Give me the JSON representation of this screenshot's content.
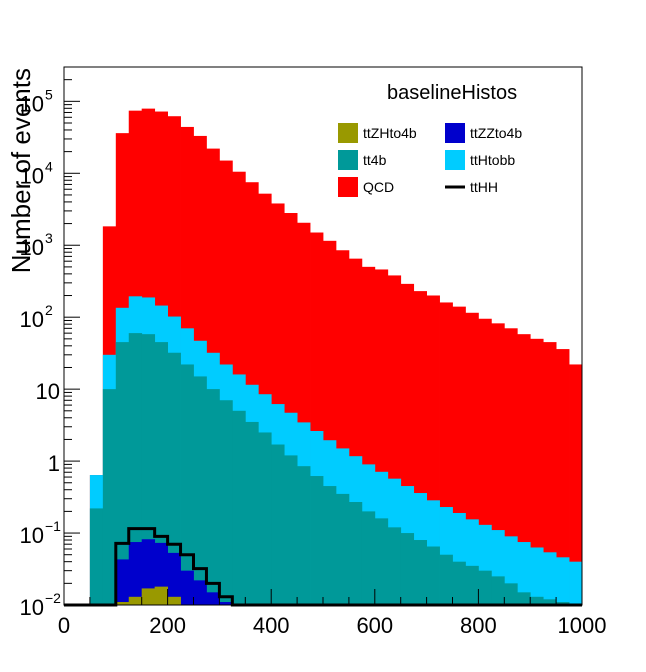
{
  "chart_data": {
    "type": "bar",
    "title": "baselineHistos",
    "xlabel": "",
    "ylabel": "Number of events",
    "xlim": [
      0,
      1000
    ],
    "ylim": [
      0.01,
      300000
    ],
    "y_scale": "log",
    "stacked": true,
    "grid": false,
    "legend_position": "top-right",
    "x_ticks": [
      "0",
      "200",
      "400",
      "600",
      "800",
      "1000"
    ],
    "y_ticks": [
      {
        "value": 0.01,
        "base": "10",
        "exp": "−2"
      },
      {
        "value": 0.1,
        "base": "10",
        "exp": "−1"
      },
      {
        "value": 1,
        "base": "1",
        "exp": ""
      },
      {
        "value": 10,
        "base": "10",
        "exp": ""
      },
      {
        "value": 100,
        "base": "10",
        "exp": "2"
      },
      {
        "value": 1000,
        "base": "10",
        "exp": "3"
      },
      {
        "value": 10000,
        "base": "10",
        "exp": "4"
      },
      {
        "value": 100000,
        "base": "10",
        "exp": "5"
      }
    ],
    "bin_edges": [
      0,
      25,
      50,
      75,
      100,
      125,
      150,
      175,
      200,
      225,
      250,
      275,
      300,
      325,
      350,
      375,
      400,
      425,
      450,
      475,
      500,
      525,
      550,
      575,
      600,
      625,
      650,
      675,
      700,
      725,
      750,
      775,
      800,
      825,
      850,
      875,
      900,
      925,
      950,
      975,
      1000
    ],
    "series": [
      {
        "name": "ttZHto4b",
        "color": "#999900",
        "kind": "fill",
        "values": [
          0,
          0,
          0,
          0,
          0.011,
          0.013,
          0.017,
          0.018,
          0.013,
          0,
          0,
          0,
          0,
          0,
          0,
          0,
          0,
          0,
          0,
          0,
          0,
          0,
          0,
          0,
          0,
          0,
          0,
          0,
          0,
          0,
          0,
          0,
          0,
          0,
          0,
          0,
          0,
          0,
          0,
          0
        ]
      },
      {
        "name": "ttZZto4b",
        "color": "#0000cc",
        "kind": "fill",
        "values": [
          0,
          0,
          0,
          0,
          0.032,
          0.062,
          0.065,
          0.055,
          0.04,
          0.03,
          0.022,
          0.015,
          0.011,
          0,
          0,
          0,
          0,
          0,
          0,
          0,
          0,
          0,
          0,
          0,
          0,
          0,
          0,
          0,
          0,
          0,
          0,
          0,
          0,
          0,
          0,
          0,
          0,
          0,
          0,
          0
        ]
      },
      {
        "name": "tt4b",
        "color": "#009999",
        "kind": "fill",
        "values": [
          0,
          0,
          0.22,
          10,
          45,
          60,
          58,
          45,
          32,
          22,
          15,
          10,
          7,
          5,
          3.5,
          2.5,
          1.7,
          1.2,
          0.85,
          0.62,
          0.45,
          0.35,
          0.27,
          0.2,
          0.16,
          0.12,
          0.1,
          0.08,
          0.065,
          0.05,
          0.04,
          0.035,
          0.03,
          0.025,
          0.02,
          0.015,
          0.013,
          0.012,
          0.011,
          0.01
        ]
      },
      {
        "name": "ttHtobb",
        "color": "#00ccff",
        "kind": "fill",
        "values": [
          0,
          0,
          0.42,
          20,
          90,
          135,
          130,
          100,
          70,
          48,
          32,
          22,
          15,
          11,
          8,
          6,
          4.5,
          3.5,
          2.6,
          2,
          1.5,
          1.15,
          0.9,
          0.7,
          0.55,
          0.45,
          0.35,
          0.28,
          0.22,
          0.18,
          0.15,
          0.12,
          0.1,
          0.085,
          0.07,
          0.06,
          0.05,
          0.042,
          0.035,
          0.03
        ]
      },
      {
        "name": "QCD",
        "color": "#ff0000",
        "kind": "fill",
        "values": [
          0,
          0,
          0,
          1800,
          36000,
          74000,
          79000,
          72000,
          62000,
          44000,
          33000,
          22000,
          15000,
          10500,
          7500,
          5200,
          3800,
          2800,
          2050,
          1500,
          1150,
          850,
          650,
          500,
          460,
          380,
          290,
          230,
          200,
          160,
          140,
          115,
          95,
          82,
          70,
          58,
          50,
          45,
          36,
          22
        ]
      },
      {
        "name": "ttHH",
        "color": "#000000",
        "kind": "line",
        "values": [
          0,
          0,
          0,
          0,
          0.072,
          0.115,
          0.115,
          0.09,
          0.07,
          0.05,
          0.032,
          0.02,
          0.013,
          0.01,
          0,
          0,
          0,
          0,
          0,
          0,
          0,
          0,
          0,
          0,
          0,
          0,
          0,
          0,
          0,
          0,
          0,
          0,
          0,
          0,
          0,
          0,
          0,
          0,
          0,
          0
        ]
      }
    ],
    "legend": [
      {
        "name": "ttZHto4b",
        "color": "#999900",
        "kind": "box"
      },
      {
        "name": "ttZZto4b",
        "color": "#0000cc",
        "kind": "box"
      },
      {
        "name": "tt4b",
        "color": "#009999",
        "kind": "box"
      },
      {
        "name": "ttHtobb",
        "color": "#00ccff",
        "kind": "box"
      },
      {
        "name": "QCD",
        "color": "#ff0000",
        "kind": "box"
      },
      {
        "name": "ttHH",
        "color": "#000000",
        "kind": "line"
      }
    ]
  }
}
